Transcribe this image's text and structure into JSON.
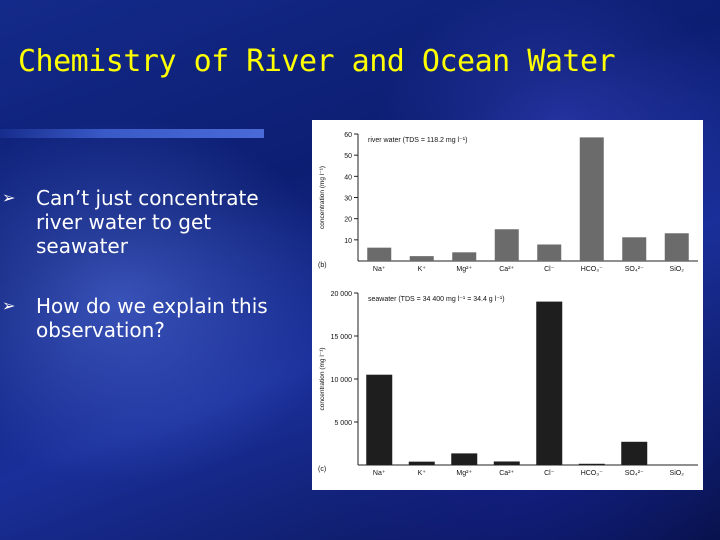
{
  "slide": {
    "title": "Chemistry of River and Ocean Water",
    "bullets": [
      "Can’t just concentrate river water to get seawater",
      "How do we explain this observation?"
    ],
    "title_color": "#ffff00",
    "text_color": "#ffffff"
  },
  "chart_data": [
    {
      "type": "bar",
      "panel_label": "(b)",
      "title": "river water (TDS = 118.2 mg l⁻¹)",
      "ylabel": "concentration (mg l⁻¹)",
      "categories": [
        "Na⁺",
        "K⁺",
        "Mg²⁺",
        "Ca²⁺",
        "Cl⁻",
        "HCO₃⁻",
        "SO₄²⁻",
        "SiO₂"
      ],
      "values": [
        6.3,
        2.3,
        4.1,
        15,
        7.8,
        58.4,
        11.2,
        13.1
      ],
      "ylim": [
        0,
        60
      ],
      "yticks": [
        "10",
        "20",
        "30",
        "40",
        "50",
        "60"
      ],
      "grid": false
    },
    {
      "type": "bar",
      "panel_label": "(c)",
      "title": "seawater (TDS = 34 400 mg l⁻¹ = 34.4 g l⁻¹)",
      "ylabel": "concentration (mg l⁻¹)",
      "categories": [
        "Na⁺",
        "K⁺",
        "Mg²⁺",
        "Ca²⁺",
        "Cl⁻",
        "HCO₃⁻",
        "SO₄²⁻",
        "SiO₂"
      ],
      "values": [
        10500,
        390,
        1350,
        410,
        19000,
        142,
        2700,
        6
      ],
      "ylim": [
        0,
        20000
      ],
      "yticks": [
        "5 000",
        "10 000",
        "15 000",
        "20 000"
      ],
      "grid": false
    }
  ]
}
